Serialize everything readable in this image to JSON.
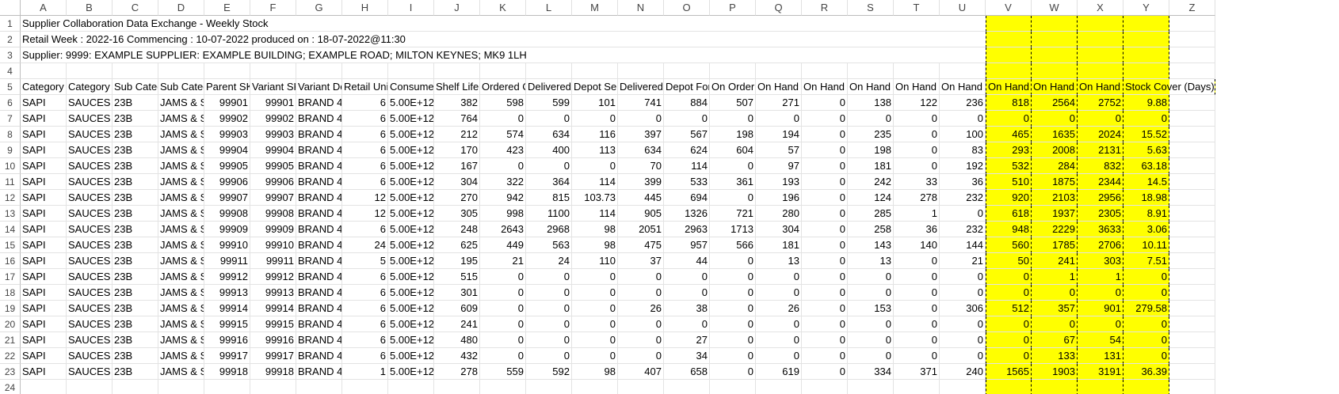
{
  "colors": {
    "highlight": "#ffff00",
    "gridline": "#e3e3e3",
    "header_text": "#444444"
  },
  "columns": [
    "A",
    "B",
    "C",
    "D",
    "E",
    "F",
    "G",
    "H",
    "I",
    "J",
    "K",
    "L",
    "M",
    "N",
    "O",
    "P",
    "Q",
    "R",
    "S",
    "T",
    "U",
    "V",
    "W",
    "X",
    "Y",
    "Z"
  ],
  "row_numbers": [
    "1",
    "2",
    "3",
    "4",
    "5",
    "6",
    "7",
    "8",
    "9",
    "10",
    "11",
    "12",
    "13",
    "14",
    "15",
    "16",
    "17",
    "18",
    "19",
    "20",
    "21",
    "22",
    "23",
    "24"
  ],
  "info_lines": [
    "Supplier Collaboration Data Exchange - Weekly Stock",
    "Retail Week : 2022-16   Commencing : 10-07-2022   produced on : 18-07-2022@11:30",
    "Supplier: 9999: EXAMPLE SUPPLIER: EXAMPLE BUILDING; EXAMPLE ROAD; MILTON KEYNES; MK9 1LH"
  ],
  "headers": [
    "Category",
    "Category I",
    "Sub Categ",
    "Sub Categ",
    "Parent SK",
    "Variant SK",
    "Variant De",
    "Retail Uni",
    "Consumer",
    "Shelf Life",
    "Ordered C",
    "Delivered",
    "Depot Ser",
    "Delivered",
    "Depot For",
    "On Order",
    "On Hand C",
    "On Hand C",
    "On Hand C",
    "On Hand C",
    "On Hand C",
    "On Hand C",
    "On Hand C",
    "On Hand C",
    "Stock Cover (Days)"
  ],
  "rows": [
    [
      "SAPI",
      "SAUCES &",
      "23B",
      "JAMS & SF",
      "99901",
      "99901",
      "BRAND 40",
      "6",
      "5.00E+12",
      "382",
      "598",
      "599",
      "101",
      "741",
      "884",
      "507",
      "271",
      "0",
      "138",
      "122",
      "236",
      "818",
      "2564",
      "2752",
      "9.88"
    ],
    [
      "SAPI",
      "SAUCES &",
      "23B",
      "JAMS & SF",
      "99902",
      "99902",
      "BRAND 40",
      "6",
      "5.00E+12",
      "764",
      "0",
      "0",
      "0",
      "0",
      "0",
      "0",
      "0",
      "0",
      "0",
      "0",
      "0",
      "0",
      "0",
      "0",
      "0"
    ],
    [
      "SAPI",
      "SAUCES &",
      "23B",
      "JAMS & SF",
      "99903",
      "99903",
      "BRAND 40",
      "6",
      "5.00E+12",
      "212",
      "574",
      "634",
      "116",
      "397",
      "567",
      "198",
      "194",
      "0",
      "235",
      "0",
      "100",
      "465",
      "1635",
      "2024",
      "15.52"
    ],
    [
      "SAPI",
      "SAUCES &",
      "23B",
      "JAMS & SF",
      "99904",
      "99904",
      "BRAND 40",
      "6",
      "5.00E+12",
      "170",
      "423",
      "400",
      "113",
      "634",
      "624",
      "604",
      "57",
      "0",
      "198",
      "0",
      "83",
      "293",
      "2008",
      "2131",
      "5.63"
    ],
    [
      "SAPI",
      "SAUCES &",
      "23B",
      "JAMS & SF",
      "99905",
      "99905",
      "BRAND 40",
      "6",
      "5.00E+12",
      "167",
      "0",
      "0",
      "0",
      "70",
      "114",
      "0",
      "97",
      "0",
      "181",
      "0",
      "192",
      "532",
      "284",
      "832",
      "63.18"
    ],
    [
      "SAPI",
      "SAUCES &",
      "23B",
      "JAMS & SF",
      "99906",
      "99906",
      "BRAND 40",
      "6",
      "5.00E+12",
      "304",
      "322",
      "364",
      "114",
      "399",
      "533",
      "361",
      "193",
      "0",
      "242",
      "33",
      "36",
      "510",
      "1875",
      "2344",
      "14.5"
    ],
    [
      "SAPI",
      "SAUCES &",
      "23B",
      "JAMS & SF",
      "99907",
      "99907",
      "BRAND 40",
      "12",
      "5.00E+12",
      "270",
      "942",
      "815",
      "103.73",
      "445",
      "694",
      "0",
      "196",
      "0",
      "124",
      "278",
      "232",
      "920",
      "2103",
      "2956",
      "18.98"
    ],
    [
      "SAPI",
      "SAUCES &",
      "23B",
      "JAMS & SF",
      "99908",
      "99908",
      "BRAND 40",
      "12",
      "5.00E+12",
      "305",
      "998",
      "1100",
      "114",
      "905",
      "1326",
      "721",
      "280",
      "0",
      "285",
      "1",
      "0",
      "618",
      "1937",
      "2305",
      "8.91"
    ],
    [
      "SAPI",
      "SAUCES &",
      "23B",
      "JAMS & SF",
      "99909",
      "99909",
      "BRAND 40",
      "6",
      "5.00E+12",
      "248",
      "2643",
      "2968",
      "98",
      "2051",
      "2963",
      "1713",
      "304",
      "0",
      "258",
      "36",
      "232",
      "948",
      "2229",
      "3633",
      "3.06"
    ],
    [
      "SAPI",
      "SAUCES &",
      "23B",
      "JAMS & SF",
      "99910",
      "99910",
      "BRAND 40",
      "24",
      "5.00E+12",
      "625",
      "449",
      "563",
      "98",
      "475",
      "957",
      "566",
      "181",
      "0",
      "143",
      "140",
      "144",
      "560",
      "1785",
      "2706",
      "10.11"
    ],
    [
      "SAPI",
      "SAUCES &",
      "23B",
      "JAMS & SF",
      "99911",
      "99911",
      "BRAND 40",
      "5",
      "5.00E+12",
      "195",
      "21",
      "24",
      "110",
      "37",
      "44",
      "0",
      "13",
      "0",
      "13",
      "0",
      "21",
      "50",
      "241",
      "303",
      "7.51"
    ],
    [
      "SAPI",
      "SAUCES &",
      "23B",
      "JAMS & SF",
      "99912",
      "99912",
      "BRAND 40",
      "6",
      "5.00E+12",
      "515",
      "0",
      "0",
      "0",
      "0",
      "0",
      "0",
      "0",
      "0",
      "0",
      "0",
      "0",
      "0",
      "1",
      "1",
      "0"
    ],
    [
      "SAPI",
      "SAUCES &",
      "23B",
      "JAMS & SF",
      "99913",
      "99913",
      "BRAND 40",
      "6",
      "5.00E+12",
      "301",
      "0",
      "0",
      "0",
      "0",
      "0",
      "0",
      "0",
      "0",
      "0",
      "0",
      "0",
      "0",
      "0",
      "0",
      "0"
    ],
    [
      "SAPI",
      "SAUCES &",
      "23B",
      "JAMS & SF",
      "99914",
      "99914",
      "BRAND 40",
      "6",
      "5.00E+12",
      "609",
      "0",
      "0",
      "0",
      "26",
      "38",
      "0",
      "26",
      "0",
      "153",
      "0",
      "306",
      "512",
      "357",
      "901",
      "279.58"
    ],
    [
      "SAPI",
      "SAUCES &",
      "23B",
      "JAMS & SF",
      "99915",
      "99915",
      "BRAND 40",
      "6",
      "5.00E+12",
      "241",
      "0",
      "0",
      "0",
      "0",
      "0",
      "0",
      "0",
      "0",
      "0",
      "0",
      "0",
      "0",
      "0",
      "0",
      "0"
    ],
    [
      "SAPI",
      "SAUCES &",
      "23B",
      "JAMS & SF",
      "99916",
      "99916",
      "BRAND 40",
      "6",
      "5.00E+12",
      "480",
      "0",
      "0",
      "0",
      "0",
      "27",
      "0",
      "0",
      "0",
      "0",
      "0",
      "0",
      "0",
      "67",
      "54",
      "0"
    ],
    [
      "SAPI",
      "SAUCES &",
      "23B",
      "JAMS & SF",
      "99917",
      "99917",
      "BRAND 40",
      "6",
      "5.00E+12",
      "432",
      "0",
      "0",
      "0",
      "0",
      "34",
      "0",
      "0",
      "0",
      "0",
      "0",
      "0",
      "0",
      "133",
      "131",
      "0"
    ],
    [
      "SAPI",
      "SAUCES &",
      "23B",
      "JAMS & SF",
      "99918",
      "99918",
      "BRAND 40",
      "1",
      "5.00E+12",
      "278",
      "559",
      "592",
      "98",
      "407",
      "658",
      "0",
      "619",
      "0",
      "334",
      "371",
      "240",
      "1565",
      "1903",
      "3191",
      "36.39"
    ]
  ]
}
